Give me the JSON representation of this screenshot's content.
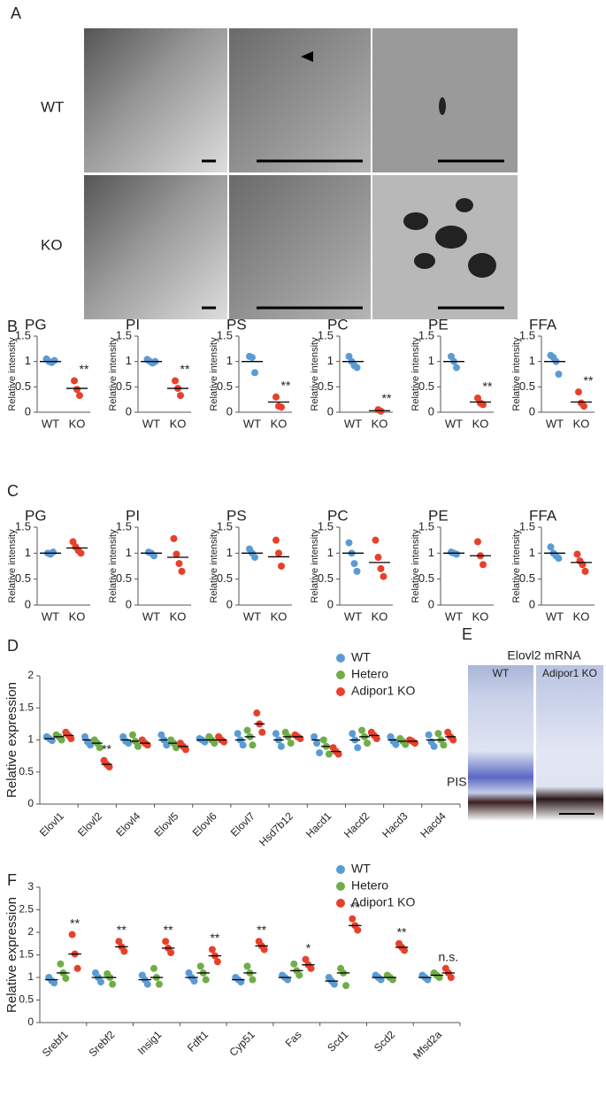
{
  "panels": {
    "A": {
      "label": "A",
      "rows": [
        "WT",
        "KO"
      ]
    },
    "B": {
      "label": "B"
    },
    "C": {
      "label": "C"
    },
    "D": {
      "label": "D"
    },
    "E": {
      "label": "E",
      "title": "Elovl2 mRNA",
      "columns": [
        "WT",
        "Adipor1 KO"
      ],
      "layer": "PIS"
    },
    "F": {
      "label": "F"
    }
  },
  "chart_data": [
    {
      "type": "strip",
      "title": "PG",
      "ylabel": "Relative intensity",
      "categories": [
        "WT",
        "KO"
      ],
      "ylim": [
        0,
        1.5
      ],
      "yticks": [
        0,
        0.5,
        1,
        1.5
      ],
      "series": [
        {
          "color": "#5b9bd5",
          "values": [
            [
              1.05,
              1.0,
              0.98,
              1.02
            ],
            null
          ],
          "means": [
            1.0,
            null
          ]
        },
        {
          "color": "#e8402a",
          "values": [
            null,
            [
              0.62,
              0.45,
              0.33
            ]
          ],
          "means": [
            null,
            0.47
          ]
        }
      ],
      "annotations": [
        null,
        "**"
      ]
    },
    {
      "type": "strip",
      "title": "PI",
      "ylabel": "Relative intensity",
      "categories": [
        "WT",
        "KO"
      ],
      "ylim": [
        0,
        1.5
      ],
      "yticks": [
        0,
        0.5,
        1,
        1.5
      ],
      "series": [
        {
          "color": "#5b9bd5",
          "values": [
            [
              1.04,
              1.0,
              0.97,
              1.0
            ],
            null
          ],
          "means": [
            1.0,
            null
          ]
        },
        {
          "color": "#e8402a",
          "values": [
            null,
            [
              0.62,
              0.47,
              0.33
            ]
          ],
          "means": [
            null,
            0.47
          ]
        }
      ],
      "annotations": [
        null,
        "**"
      ]
    },
    {
      "type": "strip",
      "title": "PS",
      "ylabel": "Relative intensity",
      "categories": [
        "WT",
        "KO"
      ],
      "ylim": [
        0,
        1.5
      ],
      "yticks": [
        0,
        0.5,
        1,
        1.5
      ],
      "series": [
        {
          "color": "#5b9bd5",
          "values": [
            [
              1.1,
              1.08,
              0.78
            ],
            null
          ],
          "means": [
            1.0,
            null
          ]
        },
        {
          "color": "#e8402a",
          "values": [
            null,
            [
              0.3,
              0.12,
              0.1
            ]
          ],
          "means": [
            null,
            0.2
          ]
        }
      ],
      "annotations": [
        null,
        "**"
      ]
    },
    {
      "type": "strip",
      "title": "PC",
      "ylabel": "Relative intensity",
      "categories": [
        "WT",
        "KO"
      ],
      "ylim": [
        0,
        1.5
      ],
      "yticks": [
        0,
        0.5,
        1,
        1.5
      ],
      "series": [
        {
          "color": "#5b9bd5",
          "values": [
            [
              1.1,
              1.0,
              0.92,
              0.88
            ],
            null
          ],
          "means": [
            1.0,
            null
          ]
        },
        {
          "color": "#e8402a",
          "values": [
            null,
            [
              0.05,
              0.02
            ]
          ],
          "means": [
            null,
            0.03
          ]
        }
      ],
      "annotations": [
        null,
        "**"
      ]
    },
    {
      "type": "strip",
      "title": "PE",
      "ylabel": "Relative intensity",
      "categories": [
        "WT",
        "KO"
      ],
      "ylim": [
        0,
        1.5
      ],
      "yticks": [
        0,
        0.5,
        1,
        1.5
      ],
      "series": [
        {
          "color": "#5b9bd5",
          "values": [
            [
              1.1,
              1.0,
              0.88
            ],
            null
          ],
          "means": [
            1.0,
            null
          ]
        },
        {
          "color": "#e8402a",
          "values": [
            null,
            [
              0.28,
              0.18,
              0.15
            ]
          ],
          "means": [
            null,
            0.2
          ]
        }
      ],
      "annotations": [
        null,
        "**"
      ]
    },
    {
      "type": "strip",
      "title": "FFA",
      "ylabel": "Relative intensity",
      "categories": [
        "WT",
        "KO"
      ],
      "ylim": [
        0,
        1.5
      ],
      "yticks": [
        0,
        0.5,
        1,
        1.5
      ],
      "series": [
        {
          "color": "#5b9bd5",
          "values": [
            [
              1.12,
              1.08,
              1.0,
              0.75
            ],
            null
          ],
          "means": [
            1.0,
            null
          ]
        },
        {
          "color": "#e8402a",
          "values": [
            null,
            [
              0.4,
              0.18,
              0.12
            ]
          ],
          "means": [
            null,
            0.2
          ]
        }
      ],
      "annotations": [
        null,
        "**"
      ]
    },
    {
      "type": "strip",
      "title": "PG",
      "ylabel": "Relative intensity",
      "categories": [
        "WT",
        "KO"
      ],
      "ylim": [
        0,
        1.5
      ],
      "yticks": [
        0,
        0.5,
        1,
        1.5
      ],
      "series": [
        {
          "color": "#5b9bd5",
          "values": [
            [
              1.0,
              0.98,
              1.02
            ],
            null
          ],
          "means": [
            1.0,
            null
          ]
        },
        {
          "color": "#e8402a",
          "values": [
            null,
            [
              1.22,
              1.12,
              1.05,
              1.0
            ]
          ],
          "means": [
            null,
            1.1
          ]
        }
      ]
    },
    {
      "type": "strip",
      "title": "PI",
      "ylabel": "Relative intensity",
      "categories": [
        "WT",
        "KO"
      ],
      "ylim": [
        0,
        1.5
      ],
      "yticks": [
        0,
        0.5,
        1,
        1.5
      ],
      "series": [
        {
          "color": "#5b9bd5",
          "values": [
            [
              1.02,
              1.0,
              0.95
            ],
            null
          ],
          "means": [
            1.0,
            null
          ]
        },
        {
          "color": "#e8402a",
          "values": [
            null,
            [
              1.28,
              0.98,
              0.8,
              0.65
            ]
          ],
          "means": [
            null,
            0.92
          ]
        }
      ]
    },
    {
      "type": "strip",
      "title": "PS",
      "ylabel": "Relative intensity",
      "categories": [
        "WT",
        "KO"
      ],
      "ylim": [
        0,
        1.5
      ],
      "yticks": [
        0,
        0.5,
        1,
        1.5
      ],
      "series": [
        {
          "color": "#5b9bd5",
          "values": [
            [
              1.08,
              1.0,
              0.92
            ],
            null
          ],
          "means": [
            1.0,
            null
          ]
        },
        {
          "color": "#e8402a",
          "values": [
            null,
            [
              1.25,
              1.0,
              0.75
            ]
          ],
          "means": [
            null,
            0.93
          ]
        }
      ]
    },
    {
      "type": "strip",
      "title": "PC",
      "ylabel": "Relative intensity",
      "categories": [
        "WT",
        "KO"
      ],
      "ylim": [
        0,
        1.5
      ],
      "yticks": [
        0,
        0.5,
        1,
        1.5
      ],
      "series": [
        {
          "color": "#5b9bd5",
          "values": [
            [
              1.2,
              1.0,
              0.8,
              0.65
            ],
            null
          ],
          "means": [
            1.0,
            null
          ]
        },
        {
          "color": "#e8402a",
          "values": [
            null,
            [
              1.25,
              0.92,
              0.7,
              0.55
            ]
          ],
          "means": [
            null,
            0.82
          ]
        }
      ]
    },
    {
      "type": "strip",
      "title": "PE",
      "ylabel": "Relative intensity",
      "categories": [
        "WT",
        "KO"
      ],
      "ylim": [
        0,
        1.5
      ],
      "yticks": [
        0,
        0.5,
        1,
        1.5
      ],
      "series": [
        {
          "color": "#5b9bd5",
          "values": [
            [
              1.02,
              1.0,
              0.98
            ],
            null
          ],
          "means": [
            1.0,
            null
          ]
        },
        {
          "color": "#e8402a",
          "values": [
            null,
            [
              1.22,
              0.95,
              0.78
            ]
          ],
          "means": [
            null,
            0.95
          ]
        }
      ]
    },
    {
      "type": "strip",
      "title": "FFA",
      "ylabel": "Relative intensity",
      "categories": [
        "WT",
        "KO"
      ],
      "ylim": [
        0,
        1.5
      ],
      "yticks": [
        0,
        0.5,
        1,
        1.5
      ],
      "series": [
        {
          "color": "#5b9bd5",
          "values": [
            [
              1.12,
              1.0,
              0.95,
              0.9
            ],
            null
          ],
          "means": [
            1.0,
            null
          ]
        },
        {
          "color": "#e8402a",
          "values": [
            null,
            [
              0.98,
              0.85,
              0.78,
              0.65
            ]
          ],
          "means": [
            null,
            0.82
          ]
        }
      ]
    },
    {
      "type": "strip",
      "ylabel": "Relative expression",
      "categories": [
        "Elovl1",
        "Elovl2",
        "Elovl4",
        "Elovl5",
        "Elovl6",
        "Elovl7",
        "Hsd7b12",
        "Hacd1",
        "Hacd2",
        "Hacd3",
        "Hacd4"
      ],
      "ylim": [
        0,
        2
      ],
      "yticks": [
        0,
        0.5,
        1,
        1.5,
        2
      ],
      "legend": "top-right",
      "series": [
        {
          "name": "WT",
          "color": "#5b9bd5",
          "values": [
            [
              1.05,
              1.02,
              0.99
            ],
            [
              1.05,
              0.97,
              0.92
            ],
            [
              1.05,
              0.98,
              0.95
            ],
            [
              1.08,
              1.0,
              0.92
            ],
            [
              1.02,
              1.0,
              0.97
            ],
            [
              1.1,
              1.0,
              0.92
            ],
            [
              1.1,
              1.0,
              0.9
            ],
            [
              1.05,
              0.95,
              0.8
            ],
            [
              1.1,
              1.0,
              0.88
            ],
            [
              1.05,
              0.98,
              0.93
            ],
            [
              1.08,
              0.97,
              0.9
            ]
          ],
          "means": [
            1.02,
            1.0,
            1.0,
            1.0,
            1.0,
            1.0,
            1.0,
            1.0,
            1.0,
            1.0,
            1.0
          ]
        },
        {
          "name": "Hetero",
          "color": "#70ad47",
          "values": [
            [
              1.08,
              1.05,
              1.0
            ],
            [
              1.0,
              0.95,
              0.88
            ],
            [
              1.08,
              0.98,
              0.9
            ],
            [
              1.0,
              0.95,
              0.88
            ],
            [
              1.05,
              1.0,
              0.95
            ],
            [
              1.15,
              1.05,
              0.92
            ],
            [
              1.12,
              1.05,
              0.95
            ],
            [
              1.0,
              0.9,
              0.78
            ],
            [
              1.15,
              1.05,
              0.95
            ],
            [
              1.02,
              0.98,
              0.93
            ],
            [
              1.1,
              1.0,
              0.92
            ]
          ],
          "means": [
            1.05,
            0.95,
            0.98,
            0.95,
            1.0,
            1.05,
            1.05,
            0.9,
            1.05,
            0.98,
            1.0
          ]
        },
        {
          "name": "Adipor1 KO",
          "color": "#e8402a",
          "values": [
            [
              1.12,
              1.07,
              1.02
            ],
            [
              0.68,
              0.62,
              0.58
            ],
            [
              1.0,
              0.95,
              0.92
            ],
            [
              0.95,
              0.9,
              0.85
            ],
            [
              1.05,
              1.0,
              0.97
            ],
            [
              1.42,
              1.25,
              1.12
            ],
            [
              1.08,
              1.05,
              1.02
            ],
            [
              0.88,
              0.82,
              0.78
            ],
            [
              1.12,
              1.07,
              1.02
            ],
            [
              1.0,
              0.98,
              0.95
            ],
            [
              1.12,
              1.05,
              1.0
            ]
          ],
          "means": [
            1.07,
            0.62,
            0.95,
            0.9,
            1.0,
            1.25,
            1.05,
            0.82,
            1.07,
            0.98,
            1.05
          ]
        }
      ],
      "annotations": [
        null,
        "**",
        null,
        null,
        null,
        null,
        null,
        null,
        null,
        null,
        null
      ]
    },
    {
      "type": "strip",
      "ylabel": "Relative expression",
      "categories": [
        "Srebf1",
        "Srebf2",
        "Insig1",
        "Fdft1",
        "Cyp51",
        "Fas",
        "Scd1",
        "Scd2",
        "Mfsd2a"
      ],
      "ylim": [
        0,
        3
      ],
      "yticks": [
        0,
        0.5,
        1,
        1.5,
        2,
        2.5,
        3
      ],
      "legend": "top-right",
      "series": [
        {
          "name": "WT",
          "color": "#5b9bd5",
          "values": [
            [
              1.0,
              0.93,
              0.88
            ],
            [
              1.1,
              1.0,
              0.9
            ],
            [
              1.05,
              0.95,
              0.85
            ],
            [
              1.1,
              1.0,
              0.92
            ],
            [
              1.0,
              0.95,
              0.9
            ],
            [
              1.05,
              1.0,
              0.95
            ],
            [
              1.0,
              0.92,
              0.85
            ],
            [
              1.05,
              1.0,
              0.95
            ],
            [
              1.05,
              1.0,
              0.95
            ]
          ],
          "means": [
            0.95,
            1.0,
            0.95,
            1.0,
            0.95,
            1.0,
            0.92,
            1.0,
            1.0
          ]
        },
        {
          "name": "Hetero",
          "color": "#70ad47",
          "values": [
            [
              1.3,
              1.1,
              0.98
            ],
            [
              1.08,
              1.0,
              0.85
            ],
            [
              1.2,
              1.0,
              0.85
            ],
            [
              1.25,
              1.1,
              0.95
            ],
            [
              1.25,
              1.1,
              0.95
            ],
            [
              1.3,
              1.15,
              1.05
            ],
            [
              1.2,
              1.1,
              0.82
            ],
            [
              1.05,
              1.0,
              0.95
            ],
            [
              1.1,
              1.05,
              1.0
            ]
          ],
          "means": [
            1.1,
            1.0,
            1.0,
            1.1,
            1.1,
            1.15,
            1.1,
            1.0,
            1.05
          ]
        },
        {
          "name": "Adipor1 KO",
          "color": "#e8402a",
          "values": [
            [
              1.95,
              1.52,
              1.2
            ],
            [
              1.8,
              1.68,
              1.58
            ],
            [
              1.8,
              1.65,
              1.55
            ],
            [
              1.62,
              1.48,
              1.35
            ],
            [
              1.8,
              1.7,
              1.62
            ],
            [
              1.4,
              1.28,
              1.2
            ],
            [
              2.3,
              2.15,
              2.05
            ],
            [
              1.75,
              1.67,
              1.6
            ],
            [
              1.2,
              1.1,
              1.0
            ]
          ],
          "means": [
            1.52,
            1.68,
            1.65,
            1.48,
            1.7,
            1.28,
            2.15,
            1.67,
            1.1
          ]
        }
      ],
      "annotations": [
        "**",
        "**",
        "**",
        "**",
        "**",
        "*",
        "**",
        "**",
        "n.s."
      ]
    }
  ]
}
